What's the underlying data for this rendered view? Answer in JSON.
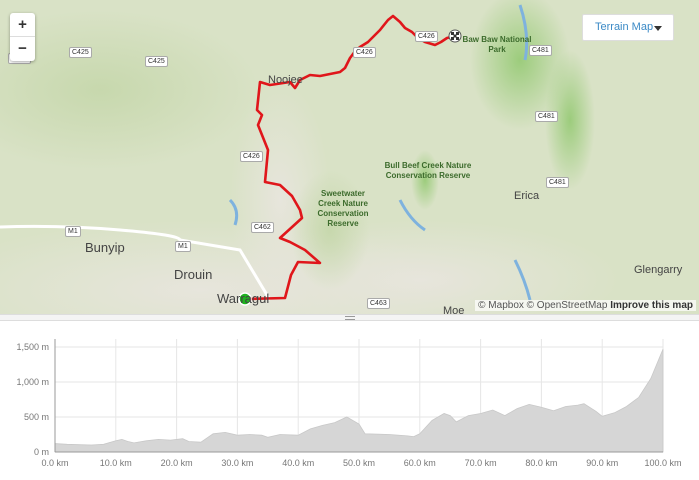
{
  "map": {
    "zoom_in": "+",
    "zoom_out": "−",
    "layer_button": "Terrain Map",
    "places": [
      "Noojee",
      "Bunyip",
      "Drouin",
      "Warragul",
      "Erica",
      "Glengarry",
      "Moe"
    ],
    "parks": [
      "Baw Baw National Park",
      "Bull Beef Creek Nature Conservation Reserve",
      "Sweetwater Creek Nature Conservation Reserve"
    ],
    "roads": [
      "C425",
      "C425",
      "C424",
      "C426",
      "C426",
      "C426",
      "C481",
      "C481",
      "C481",
      "C462",
      "C463",
      "M1",
      "M1"
    ],
    "attribution": "© Mapbox © OpenStreetMap",
    "improve": "Improve this map",
    "route_color": "#e0161b",
    "start_color": "#1fb41f",
    "start_icon": "green-dot",
    "finish_icon": "checkered-flag"
  },
  "chart_data": {
    "type": "area",
    "title": "",
    "xlabel": "",
    "ylabel": "",
    "xlim": [
      0,
      100
    ],
    "ylim": [
      0,
      1500
    ],
    "x_ticks": [
      "0.0 km",
      "10.0 km",
      "20.0 km",
      "30.0 km",
      "40.0 km",
      "50.0 km",
      "60.0 km",
      "70.0 km",
      "80.0 km",
      "90.0 km",
      "100.0 km"
    ],
    "y_ticks": [
      "0 m",
      "500 m",
      "1,000 m",
      "1,500 m"
    ],
    "grid": true,
    "fill_color": "#d6d6d6",
    "x": [
      0,
      2,
      4,
      6,
      8,
      10,
      11,
      12,
      13,
      15,
      17,
      19,
      21,
      22,
      24,
      26,
      28,
      30,
      32,
      34,
      35,
      37,
      40,
      42,
      44,
      46,
      48,
      50,
      51,
      55,
      58,
      59,
      60,
      62,
      64,
      65,
      66,
      68,
      70,
      72,
      74,
      76,
      78,
      80,
      82,
      84,
      86,
      87,
      89,
      90,
      92,
      94,
      96,
      98,
      100
    ],
    "y": [
      120,
      110,
      105,
      100,
      110,
      160,
      180,
      150,
      130,
      160,
      180,
      170,
      190,
      150,
      140,
      260,
      280,
      240,
      250,
      240,
      210,
      250,
      240,
      330,
      380,
      420,
      500,
      400,
      260,
      250,
      230,
      220,
      260,
      450,
      550,
      520,
      430,
      520,
      550,
      600,
      520,
      620,
      680,
      640,
      590,
      650,
      670,
      690,
      580,
      510,
      560,
      650,
      780,
      1050,
      1470
    ]
  }
}
